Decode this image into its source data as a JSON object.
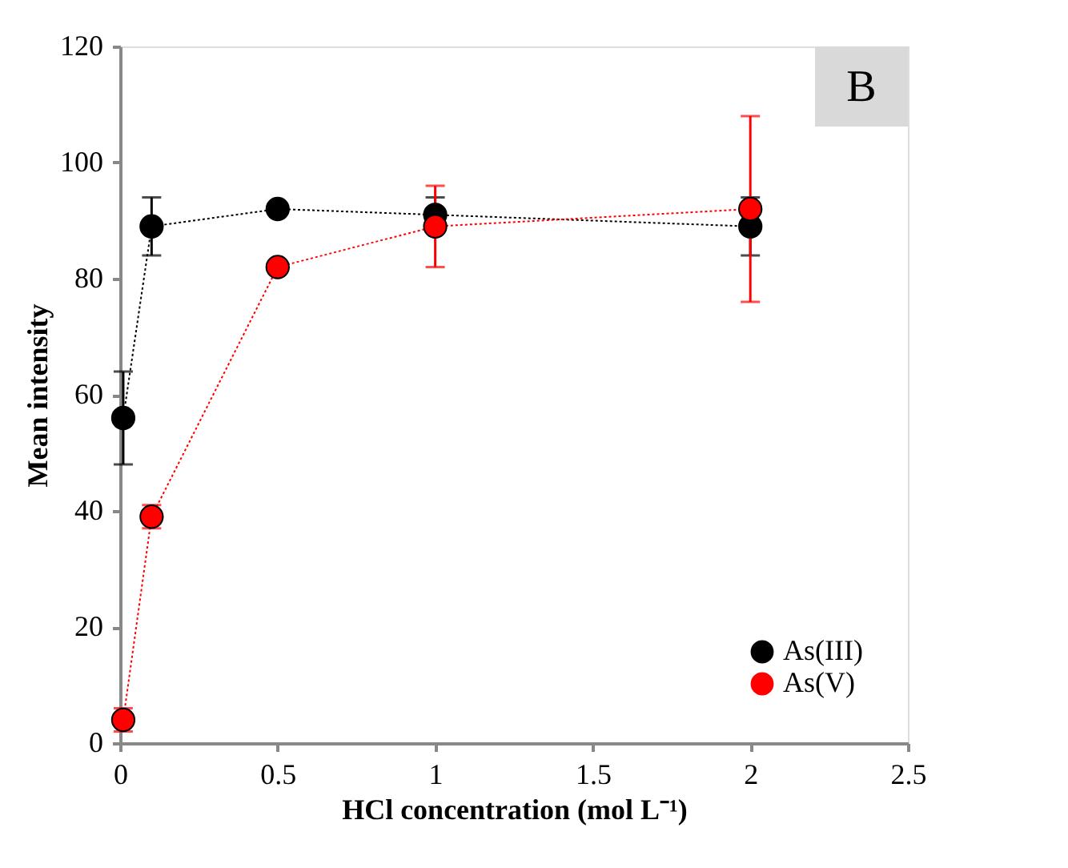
{
  "chart_data": {
    "type": "line",
    "xlabel": "HCl concentration (mol L⁻¹)",
    "ylabel": "Mean intensity",
    "annotations": [
      "B"
    ],
    "xlim": [
      0,
      2.5
    ],
    "xticks": [
      0,
      0.5,
      1,
      1.5,
      2,
      2.5
    ],
    "ylim": [
      0,
      120
    ],
    "yticks": [
      0,
      20,
      40,
      60,
      80,
      100,
      120
    ],
    "grid": false,
    "legend": "bottom right",
    "marker": "circle",
    "line_style": "dotted",
    "x": [
      0.01,
      0.1,
      0.5,
      1,
      2
    ],
    "series": [
      {
        "name": "As(III)",
        "color": "#000000",
        "values": [
          56,
          89,
          92,
          91,
          89
        ],
        "errors": [
          [
            48,
            64
          ],
          [
            84,
            94
          ],
          null,
          [
            88,
            94
          ],
          [
            84,
            94
          ]
        ]
      },
      {
        "name": "As(V)",
        "color": "#ff0000",
        "values": [
          4,
          39,
          82,
          89,
          92
        ],
        "errors": [
          [
            2,
            6
          ],
          [
            37,
            41
          ],
          [
            81,
            83
          ],
          [
            82,
            96
          ],
          [
            76,
            108
          ]
        ]
      }
    ]
  }
}
